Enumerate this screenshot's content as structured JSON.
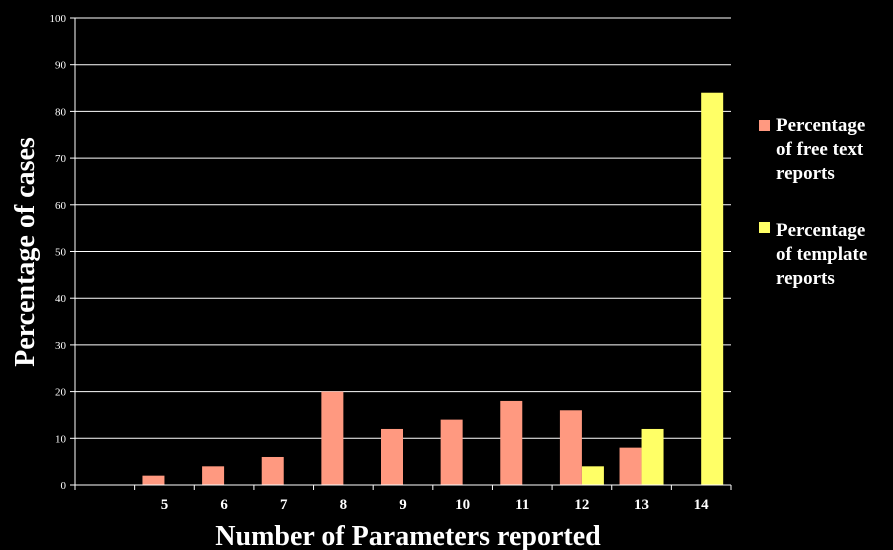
{
  "chart_data": {
    "type": "bar",
    "categories": [
      "",
      "5",
      "6",
      "7",
      "8",
      "9",
      "10",
      "11",
      "12",
      "13",
      "14"
    ],
    "series": [
      {
        "name": "Percentage of free text reports",
        "color": "#FF9980",
        "values": [
          0,
          2,
          4,
          6,
          20,
          12,
          14,
          18,
          16,
          8,
          0
        ]
      },
      {
        "name": "Percentage of template reports",
        "color": "#FFFF66",
        "values": [
          0,
          0,
          0,
          0,
          0,
          0,
          0,
          0,
          4,
          12,
          84
        ]
      }
    ],
    "yticks": [
      0,
      10,
      20,
      30,
      40,
      50,
      60,
      70,
      80,
      90,
      100
    ],
    "ylim": [
      0,
      100
    ],
    "xlabel": "Number of Parameters reported",
    "ylabel": "Percentage of cases",
    "grid": true,
    "legend_position": "right",
    "legend": [
      {
        "lines": [
          "Percentage",
          "of free text",
          "reports"
        ]
      },
      {
        "lines": [
          "Percentage",
          "of template",
          "reports"
        ]
      }
    ],
    "colors": {
      "background": "#000000",
      "axis": "#ffffff",
      "grid": "#ffffff"
    }
  }
}
